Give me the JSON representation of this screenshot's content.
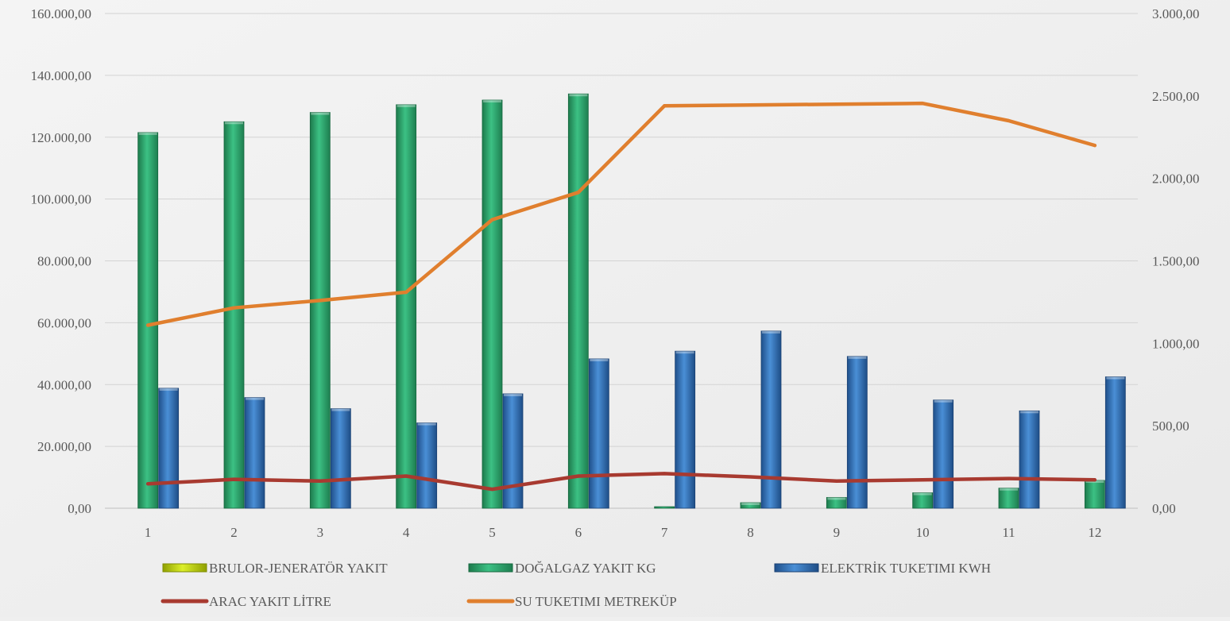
{
  "chart_data": {
    "type": "bar",
    "categories": [
      "1",
      "2",
      "3",
      "4",
      "5",
      "6",
      "7",
      "8",
      "9",
      "10",
      "11",
      "12"
    ],
    "y_left": {
      "ylim": [
        0,
        160000
      ],
      "ticks": [
        0,
        20000,
        40000,
        60000,
        80000,
        100000,
        120000,
        140000,
        160000
      ],
      "tick_labels": [
        "0,00",
        "20.000,00",
        "40.000,00",
        "60.000,00",
        "80.000,00",
        "100.000,00",
        "120.000,00",
        "140.000,00",
        "160.000,00"
      ]
    },
    "y_right": {
      "ylim": [
        0,
        3000
      ],
      "ticks": [
        0,
        500,
        1000,
        1500,
        2000,
        2500,
        3000
      ],
      "tick_labels": [
        "0,00",
        "500,00",
        "1.000,00",
        "1.500,00",
        "2.000,00",
        "2.500,00",
        "3.000,00"
      ]
    },
    "grid": true,
    "legend_position": "bottom",
    "series": [
      {
        "name": "BRULOR-JENERATÖR YAKIT",
        "type": "bar",
        "axis": "left",
        "color": "#c4d600",
        "values": [
          0,
          0,
          0,
          0,
          0,
          0,
          0,
          0,
          0,
          0,
          0,
          0
        ]
      },
      {
        "name": "DOĞALGAZ YAKIT KG",
        "type": "bar",
        "axis": "left",
        "color": "#2e9e68",
        "values": [
          121500,
          125000,
          128000,
          130500,
          132000,
          134000,
          500,
          1800,
          3500,
          5000,
          6500,
          9000
        ]
      },
      {
        "name": "ELEKTRİK TUKETIMI  KWH",
        "type": "bar",
        "axis": "left",
        "color": "#2f6db0",
        "values": [
          38800,
          35800,
          32200,
          27600,
          37000,
          48300,
          50800,
          57300,
          49100,
          35000,
          31500,
          42500
        ]
      },
      {
        "name": "ARAC YAKIT LİTRE",
        "type": "line",
        "axis": "right",
        "color": "#a83a30",
        "values": [
          148,
          175,
          165,
          195,
          115,
          195,
          210,
          190,
          165,
          172,
          180,
          172
        ]
      },
      {
        "name": "SU TUKETIMI METREKÜP",
        "type": "line",
        "axis": "right",
        "color": "#e07f2e",
        "values": [
          1110,
          1215,
          1260,
          1310,
          1750,
          1915,
          2440,
          2445,
          2450,
          2455,
          2350,
          2200
        ]
      }
    ]
  }
}
